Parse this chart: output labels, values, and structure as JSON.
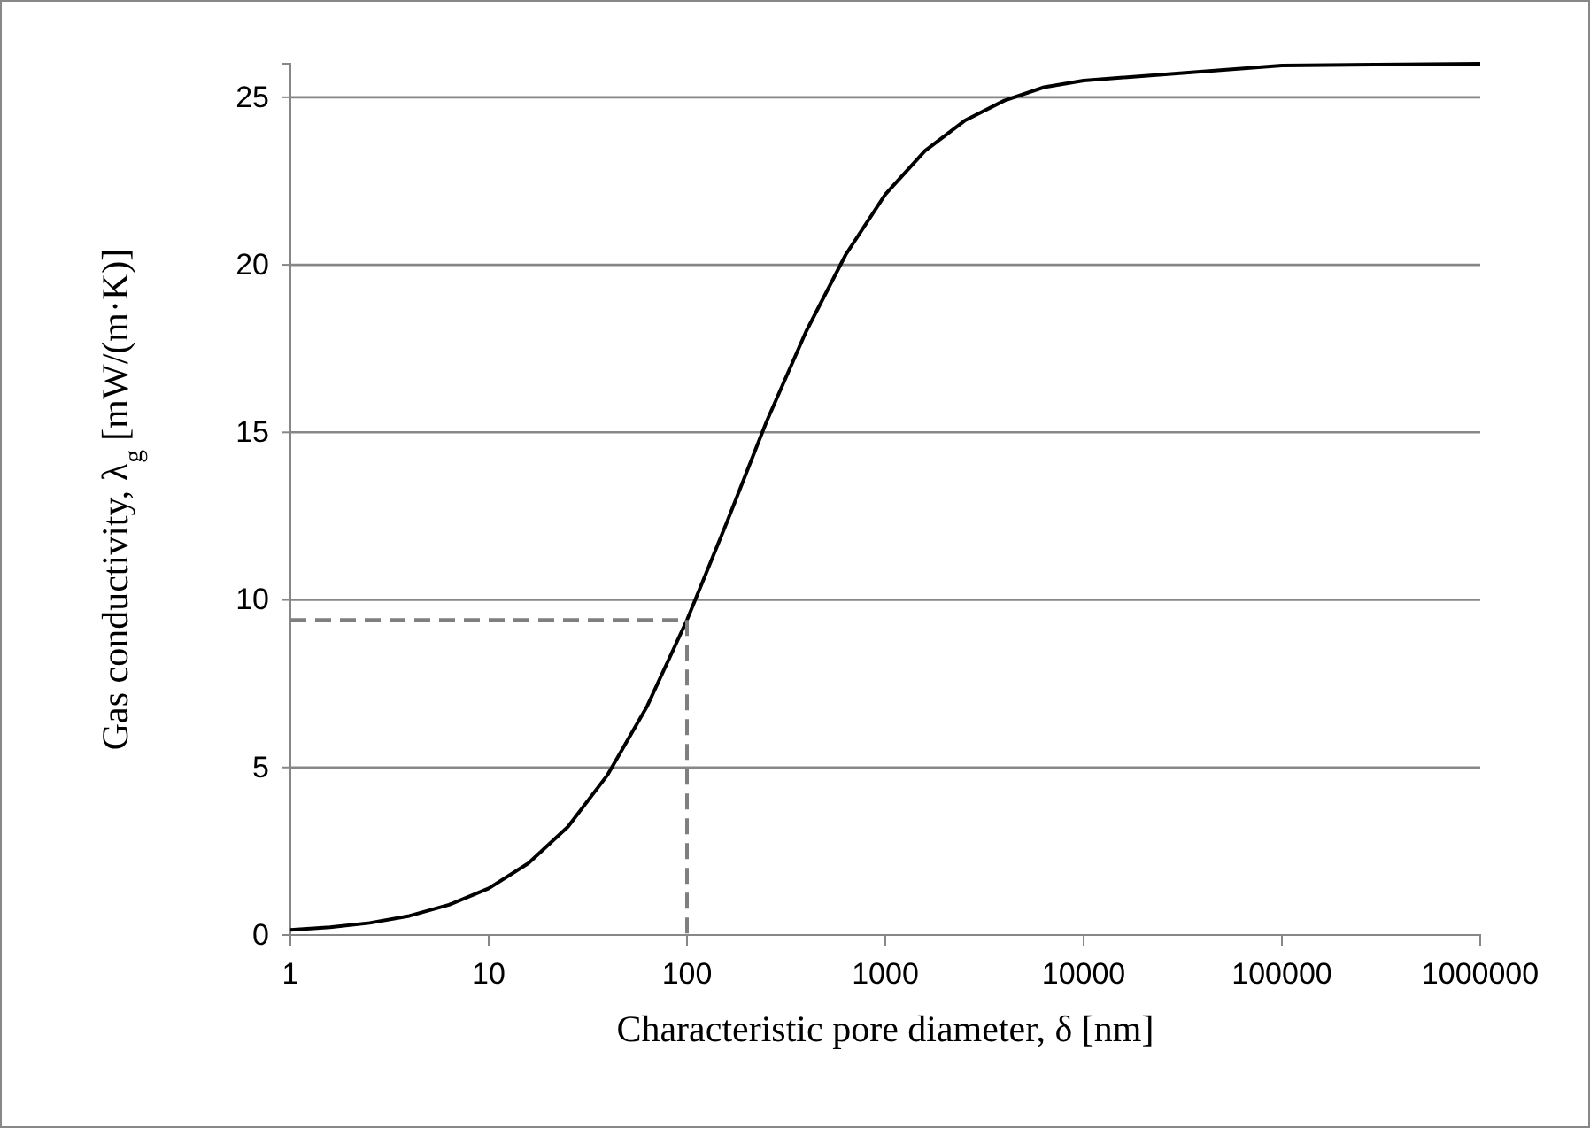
{
  "chart_data": {
    "type": "line",
    "xlabel": "Characteristic pore diameter, δ [nm]",
    "ylabel": "Gas conductivity, λ$_{g}$ [mW/(m·K)]",
    "log": "x",
    "xlim": [
      1,
      1000000
    ],
    "xticks": [
      1,
      10,
      100,
      1000,
      10000,
      100000,
      1000000
    ],
    "ylim": [
      0,
      26
    ],
    "yticks": [
      0,
      5,
      10,
      15,
      20,
      25
    ],
    "grid": "y",
    "series": [
      {
        "color": "#000000",
        "line_style": "solid",
        "x": [
          1,
          1.585,
          2.512,
          3.98,
          6.31,
          10,
          15.85,
          25.1,
          39.8,
          63.1,
          100,
          158.5,
          251,
          398,
          631,
          1000,
          1585,
          2512,
          3981,
          6310,
          10000,
          100000,
          1000000
        ],
        "values": [
          0.15,
          0.23,
          0.36,
          0.57,
          0.9,
          1.39,
          2.14,
          3.23,
          4.78,
          6.84,
          9.4,
          12.3,
          15.3,
          18,
          20.3,
          22.1,
          23.4,
          24.3,
          24.9,
          25.3,
          25.5,
          25.95,
          26
        ]
      },
      {
        "color": "#7f7f7f",
        "line_style": "dashed",
        "x": [
          1,
          100,
          100
        ],
        "values": [
          9.4,
          9.4,
          0
        ]
      }
    ]
  }
}
